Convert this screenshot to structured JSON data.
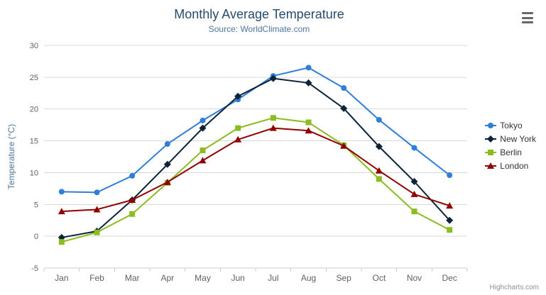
{
  "credits": "Highcharts.com",
  "icons": {
    "export_menu": "hamburger-menu-icon"
  },
  "chart_data": {
    "type": "line",
    "title": "Monthly Average Temperature",
    "subtitle": "Source: WorldClimate.com",
    "xlabel": "",
    "ylabel": "Temperature (°C)",
    "ylim": [
      -5,
      30
    ],
    "ytick_step": 5,
    "grid": true,
    "legend_position": "right",
    "categories": [
      "Jan",
      "Feb",
      "Mar",
      "Apr",
      "May",
      "Jun",
      "Jul",
      "Aug",
      "Sep",
      "Oct",
      "Nov",
      "Dec"
    ],
    "series": [
      {
        "name": "Tokyo",
        "color": "#2f7ed8",
        "marker": "circle",
        "values": [
          7.0,
          6.9,
          9.5,
          14.5,
          18.2,
          21.5,
          25.2,
          26.5,
          23.3,
          18.3,
          13.9,
          9.6
        ]
      },
      {
        "name": "New York",
        "color": "#0d233a",
        "marker": "diamond",
        "values": [
          -0.2,
          0.8,
          5.7,
          11.3,
          17.0,
          22.0,
          24.8,
          24.1,
          20.1,
          14.1,
          8.6,
          2.5
        ]
      },
      {
        "name": "Berlin",
        "color": "#8bbc21",
        "marker": "square",
        "values": [
          -0.9,
          0.6,
          3.5,
          8.4,
          13.5,
          17.0,
          18.6,
          17.9,
          14.3,
          9.0,
          3.9,
          1.0
        ]
      },
      {
        "name": "London",
        "color": "#910000",
        "marker": "triangle",
        "values": [
          3.9,
          4.2,
          5.7,
          8.5,
          11.9,
          15.2,
          17.0,
          16.6,
          14.2,
          10.3,
          6.6,
          4.8
        ]
      }
    ]
  }
}
